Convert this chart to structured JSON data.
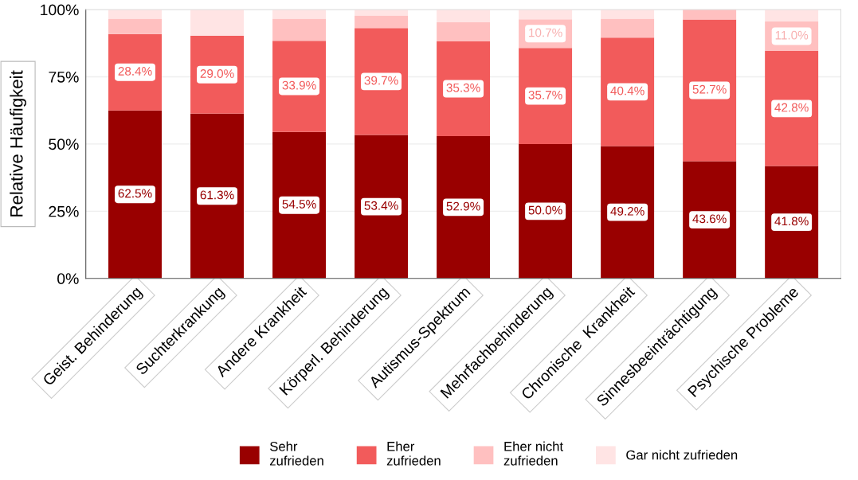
{
  "chart_data": {
    "type": "bar",
    "stacked": true,
    "ylabel": "Relative Häufigkeit",
    "categories": [
      "Geist. Behinderung",
      "Suchterkrankung",
      "Andere Krankheit",
      "Körperl. Behinderung",
      "Autismus-Spektrum",
      "Mehrfachbehinderung",
      "Chronische  Krankheit",
      "Sinnesbeeinträchtigung",
      "Psychische Probleme"
    ],
    "series": [
      {
        "name": "Sehr\nzufrieden",
        "color": "#990000",
        "values": [
          62.5,
          61.3,
          54.5,
          53.4,
          52.9,
          50.0,
          49.2,
          43.6,
          41.8
        ],
        "value_labels": [
          "62.5%",
          "61.3%",
          "54.5%",
          "53.4%",
          "52.9%",
          "50.0%",
          "49.2%",
          "43.6%",
          "41.8%"
        ]
      },
      {
        "name": "Eher\nzufrieden",
        "color": "#f25b5b",
        "values": [
          28.4,
          29.0,
          33.9,
          39.7,
          35.3,
          35.7,
          40.4,
          52.7,
          42.8
        ],
        "value_labels": [
          "28.4%",
          "29.0%",
          "33.9%",
          "39.7%",
          "35.3%",
          "35.7%",
          "40.4%",
          "52.7%",
          "42.8%"
        ]
      },
      {
        "name": "Eher nicht\nzufrieden",
        "color": "#ffc0c0",
        "values": [
          5.7,
          0,
          8.2,
          4.7,
          7.1,
          10.7,
          7.0,
          3.7,
          11.0
        ],
        "value_labels": [
          null,
          null,
          null,
          null,
          null,
          "10.7%",
          null,
          null,
          "11.0%"
        ]
      },
      {
        "name": "Gar nicht zufrieden",
        "color": "#ffe4e4",
        "values": [
          3.4,
          9.7,
          3.4,
          2.2,
          4.7,
          3.6,
          3.4,
          0,
          4.4
        ]
      }
    ],
    "ylim": [
      0,
      100
    ],
    "yticks": [
      {
        "value": 0,
        "label": "0%"
      },
      {
        "value": 25,
        "label": "25%"
      },
      {
        "value": 50,
        "label": "50%"
      },
      {
        "value": 75,
        "label": "75%"
      },
      {
        "value": 100,
        "label": "100%"
      }
    ],
    "grid": "y",
    "legend": "bottom"
  }
}
